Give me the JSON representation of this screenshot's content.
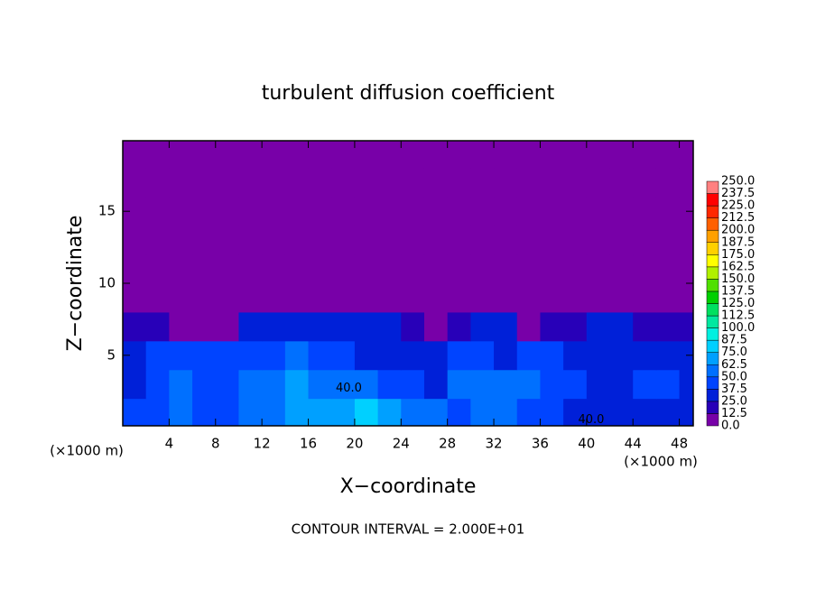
{
  "chart_data": {
    "type": "heatmap",
    "title": "turbulent diffusion coefficient",
    "x_label": "X−coordinate",
    "y_label": "Z−coordinate",
    "x_unit_labels": [
      "(×1000 m)",
      "(×1000 m)"
    ],
    "footer": "CONTOUR INTERVAL = 2.000E+01",
    "xlim": [
      0,
      49.2
    ],
    "ylim": [
      0.1,
      19.9
    ],
    "xticks": [
      4,
      8,
      12,
      16,
      20,
      24,
      28,
      32,
      36,
      40,
      44,
      48
    ],
    "yticks": [
      5,
      10,
      15
    ],
    "x": [
      1,
      3,
      5,
      7,
      9,
      11,
      13,
      15,
      17,
      19,
      21,
      23,
      25,
      27,
      29,
      31,
      33,
      35,
      37,
      39,
      41,
      43,
      45,
      47,
      49
    ],
    "y": [
      1,
      3,
      5,
      7,
      9,
      11,
      13,
      15,
      17,
      19
    ],
    "z": [
      [
        40,
        45,
        50,
        40,
        45,
        50,
        60,
        70,
        65,
        70,
        75,
        65,
        55,
        50,
        45,
        60,
        50,
        45,
        40,
        35,
        30,
        30,
        35,
        35,
        30
      ],
      [
        35,
        40,
        55,
        45,
        45,
        50,
        55,
        65,
        55,
        50,
        50,
        45,
        40,
        35,
        50,
        50,
        55,
        60,
        45,
        40,
        35,
        35,
        40,
        40,
        35
      ],
      [
        25,
        40,
        45,
        40,
        45,
        40,
        40,
        50,
        45,
        40,
        35,
        35,
        30,
        25,
        45,
        45,
        35,
        40,
        45,
        35,
        30,
        30,
        35,
        30,
        30
      ],
      [
        15,
        20,
        10,
        5,
        10,
        25,
        30,
        30,
        30,
        30,
        30,
        25,
        20,
        5,
        20,
        30,
        25,
        5,
        15,
        20,
        25,
        25,
        20,
        15,
        15
      ],
      [
        0,
        0,
        0,
        0,
        0,
        0,
        0,
        5,
        5,
        5,
        0,
        0,
        0,
        0,
        0,
        0,
        0,
        0,
        0,
        0,
        0,
        0,
        0,
        0,
        0
      ],
      [
        0,
        0,
        0,
        0,
        0,
        0,
        0,
        0,
        0,
        0,
        0,
        0,
        0,
        0,
        0,
        0,
        0,
        0,
        0,
        0,
        0,
        0,
        0,
        0,
        0
      ],
      [
        0,
        0,
        0,
        0,
        0,
        0,
        0,
        0,
        0,
        0,
        0,
        0,
        0,
        0,
        0,
        0,
        0,
        0,
        0,
        0,
        0,
        0,
        0,
        0,
        0
      ],
      [
        0,
        0,
        0,
        0,
        0,
        0,
        0,
        0,
        10,
        0,
        0,
        0,
        0,
        0,
        0,
        0,
        0,
        0,
        0,
        0,
        0,
        0,
        0,
        0,
        0
      ],
      [
        0,
        0,
        0,
        0,
        0,
        0,
        0,
        0,
        0,
        0,
        0,
        0,
        0,
        0,
        0,
        0,
        0,
        0,
        0,
        0,
        0,
        0,
        0,
        0,
        0
      ],
      [
        0,
        0,
        0,
        0,
        0,
        0,
        0,
        0,
        0,
        0,
        0,
        0,
        0,
        0,
        0,
        0,
        0,
        0,
        0,
        0,
        0,
        0,
        0,
        0,
        0
      ]
    ],
    "levels": [
      {
        "value": 0,
        "label": "0.0"
      },
      12.5,
      {
        "value": 25,
        "label": "25.0"
      },
      37.5,
      {
        "value": 50,
        "label": "50.0"
      },
      62.5,
      {
        "value": 75,
        "label": "75.0"
      },
      87.5,
      {
        "value": 100,
        "label": "100.0"
      },
      112.5,
      {
        "value": 125,
        "label": "125.0"
      },
      137.5,
      {
        "value": 150,
        "label": "150.0"
      },
      162.5,
      {
        "value": 175,
        "label": "175.0"
      },
      187.5,
      {
        "value": 200,
        "label": "200.0"
      },
      212.5,
      {
        "value": 225,
        "label": "225.0"
      },
      237.5,
      {
        "value": 250,
        "label": "250.0"
      }
    ],
    "colors": [
      "#7800a8",
      "#2800b8",
      "#0020d8",
      "#0044ff",
      "#0070ff",
      "#00a0ff",
      "#00d0ff",
      "#00f0e0",
      "#00e8a0",
      "#00e060",
      "#00d000",
      "#50e000",
      "#b0f000",
      "#ffff00",
      "#ffd000",
      "#ffa000",
      "#ff6000",
      "#ff2800",
      "#ff0000",
      "#ff8080"
    ],
    "annotations": [
      {
        "text": "40.0",
        "x": 19.5,
        "y": 2.7
      },
      {
        "text": "40.0",
        "x": 40.4,
        "y": 0.5
      }
    ]
  }
}
